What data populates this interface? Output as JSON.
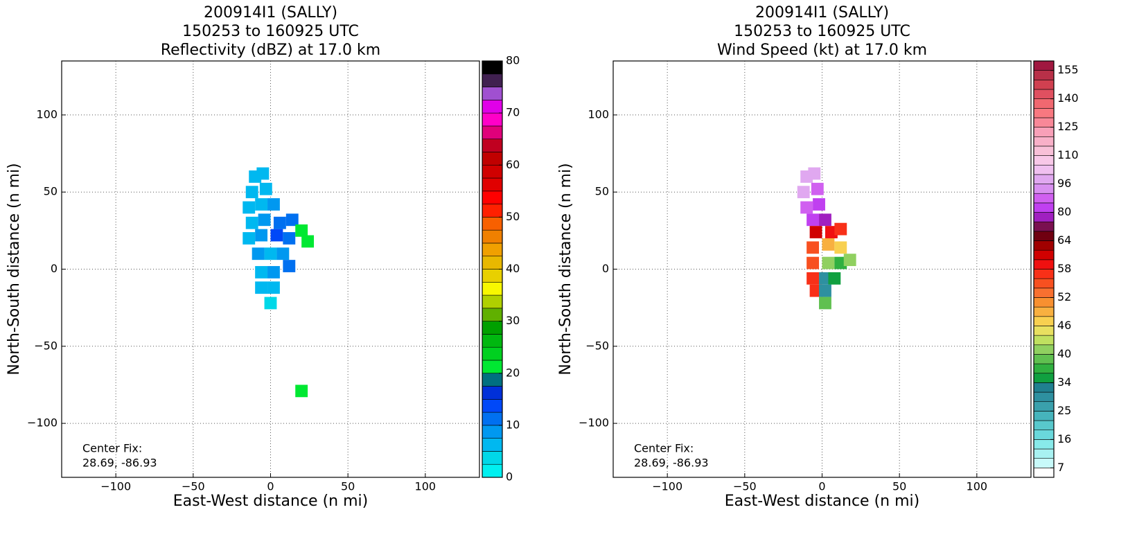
{
  "chart_data": [
    {
      "type": "heatmap",
      "title": [
        "200914I1 (SALLY)",
        "150253 to 160925 UTC",
        "Reflectivity (dBZ) at 17.0 km"
      ],
      "xlabel": "East-West distance (n mi)",
      "ylabel": "North-South distance (n mi)",
      "annotation": [
        "Center Fix:",
        "28.69, -86.93"
      ],
      "xlim": [
        -135,
        135
      ],
      "ylim": [
        -135,
        135
      ],
      "xticks": [
        {
          "value": -100,
          "label": "−100"
        },
        {
          "value": -50,
          "label": "−50"
        },
        0,
        50,
        100
      ],
      "yticks": [
        {
          "value": -100,
          "label": "−100"
        },
        {
          "value": -50,
          "label": "−50"
        },
        0,
        50,
        100
      ],
      "grid": true,
      "x": [
        -10,
        -5,
        -12,
        -3,
        -14,
        -6,
        2,
        -12,
        -4,
        6,
        14,
        -14,
        -6,
        4,
        12,
        20,
        24,
        -8,
        0,
        8,
        12,
        -6,
        2,
        -6,
        2,
        0,
        20
      ],
      "y": [
        60,
        62,
        50,
        52,
        40,
        42,
        42,
        30,
        32,
        30,
        32,
        20,
        22,
        22,
        20,
        25,
        18,
        10,
        10,
        10,
        2,
        -2,
        -2,
        -12,
        -12,
        -22,
        -79
      ],
      "values": [
        5,
        6,
        7,
        6,
        6,
        7,
        8,
        6,
        9,
        12,
        11,
        7,
        8,
        13,
        12,
        22,
        20,
        8,
        7,
        9,
        12,
        6,
        8,
        6,
        5,
        3,
        22
      ],
      "colorbar_scale": "linear",
      "clim": [
        0,
        80
      ],
      "cticks": [
        0,
        10,
        20,
        30,
        40,
        50,
        60,
        70,
        80
      ],
      "colors": [
        "#00f0f0",
        "#00d8e8",
        "#00b8f0",
        "#0098f0",
        "#0070f0",
        "#0048f8",
        "#0030d8",
        "#007080",
        "#00e832",
        "#00d020",
        "#00b810",
        "#00a000",
        "#60b000",
        "#b0d000",
        "#f8f800",
        "#e8d000",
        "#e8b800",
        "#f0a000",
        "#f08000",
        "#f86000",
        "#ff2000",
        "#ff0000",
        "#e00000",
        "#d00000",
        "#c00000",
        "#c00020",
        "#e0007a",
        "#ff00c8",
        "#e000e8",
        "#a050d0",
        "#402050",
        "#000000"
      ]
    },
    {
      "type": "heatmap",
      "title": [
        "200914I1 (SALLY)",
        "150253 to 160925 UTC",
        "Wind Speed (kt) at 17.0 km"
      ],
      "xlabel": "East-West distance (n mi)",
      "ylabel": "North-South distance (n mi)",
      "annotation": [
        "Center Fix:",
        "28.69, -86.93"
      ],
      "xlim": [
        -135,
        135
      ],
      "ylim": [
        -135,
        135
      ],
      "xticks": [
        {
          "value": -100,
          "label": "−100"
        },
        {
          "value": -50,
          "label": "−50"
        },
        0,
        50,
        100
      ],
      "yticks": [
        {
          "value": -100,
          "label": "−100"
        },
        {
          "value": -50,
          "label": "−50"
        },
        0,
        50,
        100
      ],
      "grid": true,
      "x": [
        -10,
        -5,
        -12,
        -3,
        -10,
        -2,
        -6,
        2,
        -4,
        6,
        12,
        -6,
        4,
        12,
        -6,
        4,
        12,
        18,
        -6,
        2,
        8,
        -4,
        2,
        2
      ],
      "y": [
        60,
        62,
        50,
        52,
        40,
        42,
        32,
        32,
        24,
        24,
        26,
        14,
        16,
        14,
        4,
        4,
        4,
        6,
        -6,
        -6,
        -6,
        -14,
        -14,
        -22
      ],
      "values": [
        100,
        96,
        96,
        90,
        90,
        85,
        80,
        75,
        60,
        58,
        56,
        55,
        48,
        46,
        55,
        40,
        36,
        40,
        56,
        30,
        34,
        57,
        28,
        38
      ],
      "colorbar_scale": "discrete",
      "cticks": [
        7,
        16,
        25,
        34,
        40,
        46,
        52,
        58,
        64,
        80,
        96,
        110,
        125,
        140,
        155
      ],
      "colors": [
        "#ffffff",
        "#c8fafa",
        "#a8f2f2",
        "#88eaea",
        "#6ad8dc",
        "#58c8cc",
        "#46b4bc",
        "#3aa0ac",
        "#2e90a0",
        "#208090",
        "#10a040",
        "#30b040",
        "#60c050",
        "#90d060",
        "#c0e060",
        "#e8e060",
        "#f8d050",
        "#f8b040",
        "#f89030",
        "#f87030",
        "#f85020",
        "#f83018",
        "#f01010",
        "#d00000",
        "#a00000",
        "#700010",
        "#7a1050",
        "#a020c0",
        "#c040f0",
        "#d060f0",
        "#d890f0",
        "#e0a8f0",
        "#f0c0f0",
        "#f8c8e8",
        "#f8c0d8",
        "#f8b0c8",
        "#f8a0b8",
        "#f88898",
        "#f87880",
        "#f06870",
        "#e05060",
        "#d04050",
        "#b83048",
        "#a01840"
      ]
    }
  ]
}
